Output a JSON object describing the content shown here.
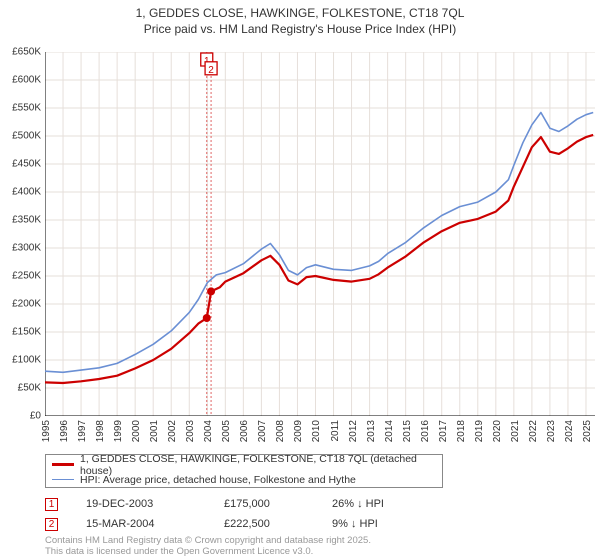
{
  "title_line1": "1, GEDDES CLOSE, HAWKINGE, FOLKESTONE, CT18 7QL",
  "title_line2": "Price paid vs. HM Land Registry's House Price Index (HPI)",
  "chart": {
    "type": "line",
    "ylim": [
      0,
      650000
    ],
    "ytick_step": 50000,
    "ytick_labels": [
      "£0",
      "£50K",
      "£100K",
      "£150K",
      "£200K",
      "£250K",
      "£300K",
      "£350K",
      "£400K",
      "£450K",
      "£500K",
      "£550K",
      "£600K",
      "£650K"
    ],
    "x_years": [
      1995,
      1996,
      1997,
      1998,
      1999,
      2000,
      2001,
      2002,
      2003,
      2004,
      2005,
      2006,
      2007,
      2008,
      2009,
      2010,
      2011,
      2012,
      2013,
      2014,
      2015,
      2016,
      2017,
      2018,
      2019,
      2020,
      2021,
      2022,
      2023,
      2024,
      2025
    ],
    "x_domain": [
      1995,
      2025.5
    ],
    "background_color": "#ffffff",
    "grid_color": "#e6dfda",
    "axis_color": "#000000",
    "series": [
      {
        "name": "property",
        "label": "1, GEDDES CLOSE, HAWKINGE, FOLKESTONE, CT18 7QL (detached house)",
        "color": "#cc0000",
        "line_width": 2.2,
        "points": [
          [
            1995,
            60000
          ],
          [
            1996,
            59000
          ],
          [
            1997,
            62000
          ],
          [
            1998,
            66000
          ],
          [
            1999,
            72000
          ],
          [
            2000,
            85000
          ],
          [
            2001,
            100000
          ],
          [
            2002,
            120000
          ],
          [
            2003,
            148000
          ],
          [
            2003.5,
            165000
          ],
          [
            2003.97,
            175000
          ],
          [
            2004.21,
            222500
          ],
          [
            2004.7,
            230000
          ],
          [
            2005,
            240000
          ],
          [
            2006,
            255000
          ],
          [
            2007,
            278000
          ],
          [
            2007.5,
            286000
          ],
          [
            2008,
            270000
          ],
          [
            2008.5,
            242000
          ],
          [
            2009,
            235000
          ],
          [
            2009.5,
            248000
          ],
          [
            2010,
            250000
          ],
          [
            2011,
            243000
          ],
          [
            2012,
            240000
          ],
          [
            2013,
            245000
          ],
          [
            2013.5,
            253000
          ],
          [
            2014,
            265000
          ],
          [
            2015,
            285000
          ],
          [
            2016,
            310000
          ],
          [
            2017,
            330000
          ],
          [
            2018,
            345000
          ],
          [
            2019,
            352000
          ],
          [
            2020,
            365000
          ],
          [
            2020.7,
            385000
          ],
          [
            2021,
            410000
          ],
          [
            2021.5,
            445000
          ],
          [
            2022,
            480000
          ],
          [
            2022.5,
            498000
          ],
          [
            2023,
            472000
          ],
          [
            2023.5,
            468000
          ],
          [
            2024,
            478000
          ],
          [
            2024.5,
            490000
          ],
          [
            2025,
            498000
          ],
          [
            2025.4,
            502000
          ]
        ]
      },
      {
        "name": "hpi",
        "label": "HPI: Average price, detached house, Folkestone and Hythe",
        "color": "#6a8fd4",
        "line_width": 1.6,
        "points": [
          [
            1995,
            80000
          ],
          [
            1996,
            78000
          ],
          [
            1997,
            82000
          ],
          [
            1998,
            86000
          ],
          [
            1999,
            94000
          ],
          [
            2000,
            110000
          ],
          [
            2001,
            128000
          ],
          [
            2002,
            152000
          ],
          [
            2003,
            185000
          ],
          [
            2003.5,
            208000
          ],
          [
            2004,
            238000
          ],
          [
            2004.5,
            252000
          ],
          [
            2005,
            256000
          ],
          [
            2006,
            272000
          ],
          [
            2007,
            298000
          ],
          [
            2007.5,
            308000
          ],
          [
            2008,
            288000
          ],
          [
            2008.5,
            260000
          ],
          [
            2009,
            252000
          ],
          [
            2009.5,
            265000
          ],
          [
            2010,
            270000
          ],
          [
            2011,
            262000
          ],
          [
            2012,
            260000
          ],
          [
            2013,
            268000
          ],
          [
            2013.5,
            276000
          ],
          [
            2014,
            290000
          ],
          [
            2015,
            310000
          ],
          [
            2016,
            336000
          ],
          [
            2017,
            358000
          ],
          [
            2018,
            374000
          ],
          [
            2019,
            382000
          ],
          [
            2020,
            400000
          ],
          [
            2020.7,
            422000
          ],
          [
            2021,
            448000
          ],
          [
            2021.5,
            488000
          ],
          [
            2022,
            520000
          ],
          [
            2022.5,
            542000
          ],
          [
            2023,
            514000
          ],
          [
            2023.5,
            508000
          ],
          [
            2024,
            518000
          ],
          [
            2024.5,
            530000
          ],
          [
            2025,
            538000
          ],
          [
            2025.4,
            542000
          ]
        ]
      }
    ],
    "sale_markers": [
      {
        "n": "1",
        "x": 2003.97,
        "y": 175000,
        "line_color": "#cc0000",
        "dash": "2,2"
      },
      {
        "n": "2",
        "x": 2004.21,
        "y": 222500,
        "line_color": "#cc0000",
        "dash": "2,2",
        "label_y": 620000
      }
    ]
  },
  "legend": [
    {
      "label": "1, GEDDES CLOSE, HAWKINGE, FOLKESTONE, CT18 7QL (detached house)",
      "color": "#cc0000",
      "thick": 2.5
    },
    {
      "label": "HPI: Average price, detached house, Folkestone and Hythe",
      "color": "#6a8fd4",
      "thick": 1.8
    }
  ],
  "sales": [
    {
      "n": "1",
      "date": "19-DEC-2003",
      "price": "£175,000",
      "delta": "26% ↓ HPI",
      "color": "#cc0000"
    },
    {
      "n": "2",
      "date": "15-MAR-2004",
      "price": "£222,500",
      "delta": "9% ↓ HPI",
      "color": "#cc0000"
    }
  ],
  "footer1": "Contains HM Land Registry data © Crown copyright and database right 2025.",
  "footer2": "This data is licensed under the Open Government Licence v3.0."
}
